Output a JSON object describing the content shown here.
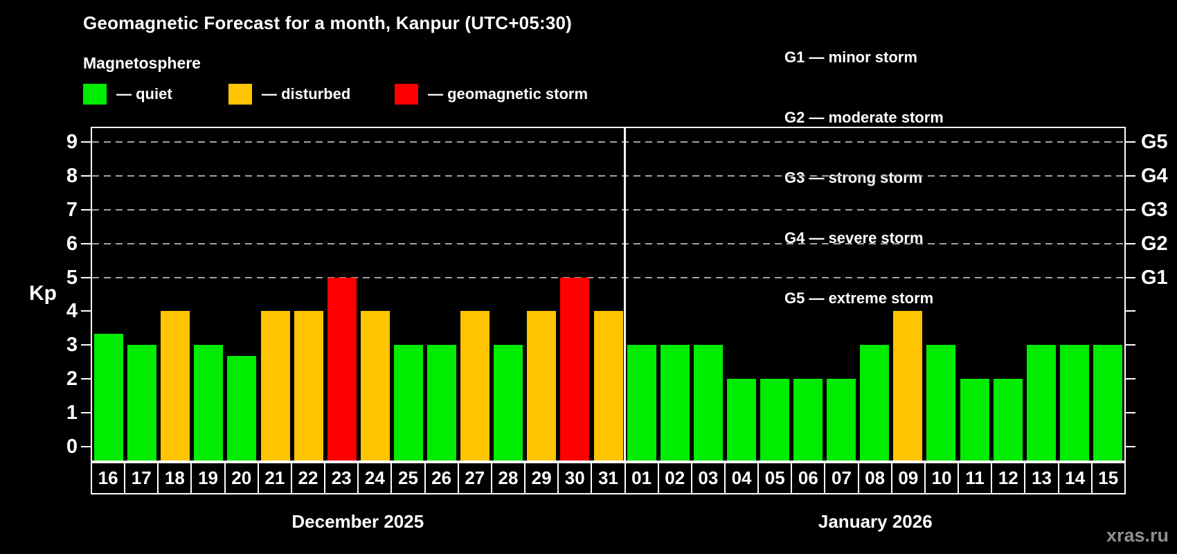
{
  "title": "Geomagnetic Forecast for a month, Kanpur (UTC+05:30)",
  "subtitle": "Magnetosphere",
  "legend": {
    "items": [
      {
        "label": "— quiet",
        "status": "quiet",
        "color": "#00ec00"
      },
      {
        "label": "— disturbed",
        "status": "disturbed",
        "color": "#ffc400"
      },
      {
        "label": "— geomagnetic storm",
        "status": "storm",
        "color": "#ff0000"
      }
    ]
  },
  "g_legend": [
    "G1 — minor storm",
    "G2 — moderate storm",
    "G3 — strong storm",
    "G4 — severe storm",
    "G5 — extreme storm"
  ],
  "watermark": "xras.ru",
  "chart_data": {
    "type": "bar",
    "ylabel": "Kp",
    "ylim": [
      -0.42,
      9.42
    ],
    "y_ticks": [
      0,
      1,
      2,
      3,
      4,
      5,
      6,
      7,
      8,
      9
    ],
    "gridlines": [
      5,
      6,
      7,
      8,
      9
    ],
    "grid_color": "#a3a3a3",
    "grid_on": true,
    "legend_position": "top",
    "right_axis": [
      {
        "value": 5,
        "label": "G1"
      },
      {
        "value": 6,
        "label": "G2"
      },
      {
        "value": 7,
        "label": "G3"
      },
      {
        "value": 8,
        "label": "G4"
      },
      {
        "value": 9,
        "label": "G5"
      }
    ],
    "status_colors": {
      "quiet": "#00ec00",
      "disturbed": "#ffc400",
      "storm": "#ff0000"
    },
    "months": [
      {
        "label": "December 2025",
        "days": [
          {
            "day": "16",
            "kp": 3.33,
            "status": "quiet"
          },
          {
            "day": "17",
            "kp": 3,
            "status": "quiet"
          },
          {
            "day": "18",
            "kp": 4,
            "status": "disturbed"
          },
          {
            "day": "19",
            "kp": 3,
            "status": "quiet"
          },
          {
            "day": "20",
            "kp": 2.67,
            "status": "quiet"
          },
          {
            "day": "21",
            "kp": 4,
            "status": "disturbed"
          },
          {
            "day": "22",
            "kp": 4,
            "status": "disturbed"
          },
          {
            "day": "23",
            "kp": 5,
            "status": "storm"
          },
          {
            "day": "24",
            "kp": 4,
            "status": "disturbed"
          },
          {
            "day": "25",
            "kp": 3,
            "status": "quiet"
          },
          {
            "day": "26",
            "kp": 3,
            "status": "quiet"
          },
          {
            "day": "27",
            "kp": 4,
            "status": "disturbed"
          },
          {
            "day": "28",
            "kp": 3,
            "status": "quiet"
          },
          {
            "day": "29",
            "kp": 4,
            "status": "disturbed"
          },
          {
            "day": "30",
            "kp": 5,
            "status": "storm"
          },
          {
            "day": "31",
            "kp": 4,
            "status": "disturbed"
          }
        ]
      },
      {
        "label": "January 2026",
        "days": [
          {
            "day": "01",
            "kp": 3,
            "status": "quiet"
          },
          {
            "day": "02",
            "kp": 3,
            "status": "quiet"
          },
          {
            "day": "03",
            "kp": 3,
            "status": "quiet"
          },
          {
            "day": "04",
            "kp": 2,
            "status": "quiet"
          },
          {
            "day": "05",
            "kp": 2,
            "status": "quiet"
          },
          {
            "day": "06",
            "kp": 2,
            "status": "quiet"
          },
          {
            "day": "07",
            "kp": 2,
            "status": "quiet"
          },
          {
            "day": "08",
            "kp": 3,
            "status": "quiet"
          },
          {
            "day": "09",
            "kp": 4,
            "status": "disturbed"
          },
          {
            "day": "10",
            "kp": 3,
            "status": "quiet"
          },
          {
            "day": "11",
            "kp": 2,
            "status": "quiet"
          },
          {
            "day": "12",
            "kp": 2,
            "status": "quiet"
          },
          {
            "day": "13",
            "kp": 3,
            "status": "quiet"
          },
          {
            "day": "14",
            "kp": 3,
            "status": "quiet"
          },
          {
            "day": "15",
            "kp": 3,
            "status": "quiet"
          }
        ]
      }
    ]
  }
}
